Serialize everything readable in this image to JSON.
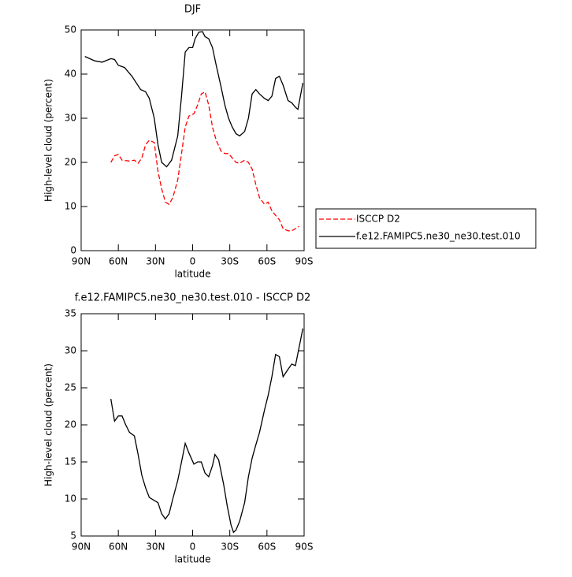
{
  "chart_data": [
    {
      "type": "line",
      "title": "DJF",
      "xlabel": "latitude",
      "ylabel": "High-level cloud (percent)",
      "xlim": [
        90,
        -90
      ],
      "ylim": [
        0,
        50
      ],
      "xticks": [
        {
          "value": 90,
          "label": "90N"
        },
        {
          "value": 60,
          "label": "60N"
        },
        {
          "value": 30,
          "label": "30N"
        },
        0,
        {
          "value": -30,
          "label": "30S"
        },
        {
          "value": -60,
          "label": "60S"
        },
        {
          "value": -90,
          "label": "90S"
        }
      ],
      "yticks": [
        0,
        10,
        20,
        30,
        40,
        50
      ],
      "legend": "right",
      "series": [
        {
          "name": "ISCCP D2",
          "color": "#ff0000",
          "dashed": true,
          "x": [
            66,
            63,
            60,
            57,
            51,
            47,
            44,
            41,
            38,
            35,
            31,
            28,
            25,
            22,
            19,
            16,
            12,
            9,
            6,
            3,
            -1,
            -4,
            -7,
            -10,
            -13,
            -16,
            -19,
            -23,
            -26,
            -29,
            -32,
            -35,
            -38,
            -42,
            -45,
            -48,
            -51,
            -54,
            -58,
            -61,
            -64,
            -67,
            -70,
            -73,
            -77,
            -80,
            -83,
            -86
          ],
          "values": [
            20,
            21.5,
            21.8,
            20.5,
            20.3,
            20.5,
            19.8,
            21,
            24,
            25,
            24.5,
            18,
            14,
            11,
            10.5,
            12,
            16,
            22,
            28,
            30.5,
            31,
            33,
            35.5,
            36,
            33,
            28,
            25,
            22.5,
            22,
            22,
            21,
            20,
            19.8,
            20.5,
            20,
            18.5,
            15,
            12,
            10.5,
            11,
            9,
            8,
            7,
            5,
            4.5,
            4.5,
            5,
            5.5
          ]
        },
        {
          "name": "f.e12.FAMIPC5.ne30_ne30.test.010",
          "color": "#000000",
          "dashed": false,
          "x": [
            87,
            79,
            73,
            66,
            63,
            60,
            55,
            49,
            42,
            38,
            35,
            31,
            28,
            25,
            21,
            17,
            12,
            9,
            6,
            3,
            0,
            -2,
            -5,
            -8,
            -10,
            -13,
            -16,
            -19,
            -23,
            -26,
            -29,
            -32,
            -35,
            -38,
            -42,
            -45,
            -48,
            -51,
            -54,
            -58,
            -61,
            -64,
            -67,
            -70,
            -73,
            -77,
            -80,
            -83,
            -85,
            -89
          ],
          "values": [
            44,
            43,
            42.7,
            43.5,
            43.3,
            42,
            41.5,
            39.5,
            36.5,
            36,
            34.5,
            30,
            24,
            20,
            19,
            20.5,
            26,
            35,
            45,
            46,
            46,
            48,
            49.5,
            49.6,
            48.5,
            48,
            46,
            42,
            37,
            33,
            30,
            28,
            26.5,
            26,
            27,
            30,
            35.5,
            36.5,
            35.5,
            34.5,
            34,
            35,
            39,
            39.5,
            37.5,
            34,
            33.5,
            32.5,
            32,
            38
          ]
        }
      ]
    },
    {
      "type": "line",
      "title": "f.e12.FAMIPC5.ne30_ne30.test.010 - ISCCP D2",
      "xlabel": "latitude",
      "ylabel": "High-level cloud (percent)",
      "xlim": [
        90,
        -90
      ],
      "ylim": [
        5,
        35
      ],
      "xticks": [
        {
          "value": 90,
          "label": "90N"
        },
        {
          "value": 60,
          "label": "60N"
        },
        {
          "value": 30,
          "label": "30N"
        },
        0,
        {
          "value": -30,
          "label": "30S"
        },
        {
          "value": -60,
          "label": "60S"
        },
        {
          "value": -90,
          "label": "90S"
        }
      ],
      "yticks": [
        5,
        10,
        15,
        20,
        25,
        30,
        35
      ],
      "series": [
        {
          "color": "#000000",
          "dashed": false,
          "x": [
            66,
            63,
            60,
            57,
            54,
            51,
            47,
            44,
            41,
            38,
            35,
            31,
            28,
            25,
            22,
            19,
            16,
            12,
            9,
            6,
            3,
            -1,
            -4,
            -7,
            -10,
            -13,
            -16,
            -18,
            -21,
            -25,
            -28,
            -31,
            -33,
            -35,
            -38,
            -42,
            -45,
            -48,
            -51,
            -54,
            -58,
            -61,
            -64,
            -67,
            -70,
            -73,
            -77,
            -80,
            -83,
            -86,
            -89
          ],
          "values": [
            23.5,
            20.5,
            21.2,
            21.2,
            20,
            19,
            18.5,
            16,
            13.2,
            11.5,
            10.2,
            9.8,
            9.5,
            8,
            7.3,
            8,
            10,
            12.5,
            15,
            17.5,
            16.2,
            14.7,
            15,
            15,
            13.5,
            13,
            14.5,
            16,
            15.3,
            12,
            9,
            6.5,
            5.5,
            5.8,
            7,
            9.5,
            13,
            15.5,
            17.3,
            19,
            22,
            24,
            26.5,
            29.5,
            29.2,
            26.5,
            27.5,
            28.2,
            28,
            30.5,
            33
          ]
        }
      ]
    }
  ]
}
